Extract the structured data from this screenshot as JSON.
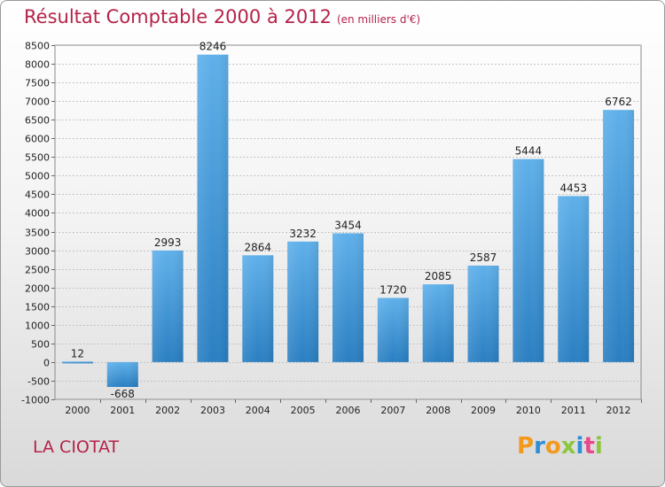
{
  "title": "Résultat Comptable 2000 à 2012",
  "subtitle": "(en milliers d'€)",
  "city": "LA CIOTAT",
  "brand": {
    "text": "Proxiti",
    "letters": [
      {
        "ch": "P",
        "color": "#f39a1e"
      },
      {
        "ch": "r",
        "color": "#2f8fd6"
      },
      {
        "ch": "o",
        "color": "#f39a1e"
      },
      {
        "ch": "x",
        "color": "#8cc63e"
      },
      {
        "ch": "i",
        "color": "#2f8fd6"
      },
      {
        "ch": "t",
        "color": "#e64a8a"
      },
      {
        "ch": "i",
        "color": "#8cc63e"
      }
    ]
  },
  "colors": {
    "bar_light": "#5fb0ea",
    "bar_dark": "#2a7fc2",
    "title": "#b5234a"
  },
  "chart_data": {
    "type": "bar",
    "title": "Résultat Comptable 2000 à 2012",
    "subtitle": "(en milliers d'€)",
    "categories": [
      "2000",
      "2001",
      "2002",
      "2003",
      "2004",
      "2005",
      "2006",
      "2007",
      "2008",
      "2009",
      "2010",
      "2011",
      "2012"
    ],
    "values": [
      12,
      -668,
      2993,
      8246,
      2864,
      3232,
      3454,
      1720,
      2085,
      2587,
      5444,
      4453,
      6762
    ],
    "ylim": [
      -1000,
      8500
    ],
    "yticks": [
      -1000,
      -500,
      0,
      500,
      1000,
      1500,
      2000,
      2500,
      3000,
      3500,
      4000,
      4500,
      5000,
      5500,
      6000,
      6500,
      7000,
      7500,
      8000,
      8500
    ],
    "grid": true,
    "xlabel": "",
    "ylabel": ""
  }
}
